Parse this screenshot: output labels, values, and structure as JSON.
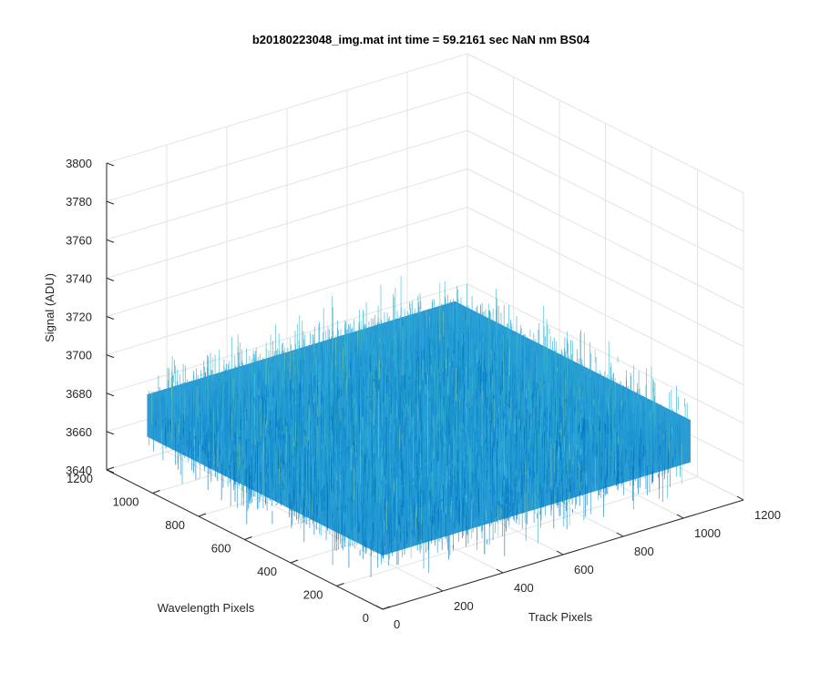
{
  "chart_data": {
    "type": "surface",
    "title": "b20180223048_img.mat int time = 59.2161 sec  NaN nm BS04",
    "xlabel": "Track Pixels",
    "ylabel": "Wavelength Pixels",
    "zlabel": "Signal (ADU)",
    "xlim": [
      0,
      1200
    ],
    "ylim": [
      0,
      1200
    ],
    "zlim": [
      3640,
      3800
    ],
    "x_ticks": [
      "0",
      "200",
      "400",
      "600",
      "800",
      "1000",
      "1200"
    ],
    "y_ticks": [
      "0",
      "200",
      "400",
      "600",
      "800",
      "1000",
      "1200"
    ],
    "z_ticks": [
      "3640",
      "3660",
      "3680",
      "3700",
      "3720",
      "3740",
      "3760",
      "3780",
      "3800"
    ],
    "grid": true,
    "surface": {
      "x_range": [
        0,
        1024
      ],
      "y_range": [
        0,
        1024
      ],
      "mean_signal": 3680,
      "noise_min": 3650,
      "noise_max": 3745,
      "colormap": [
        "#0072bd",
        "#1a8fd0",
        "#2aa5d5",
        "#3bb5c8",
        "#77c4a5"
      ]
    }
  }
}
